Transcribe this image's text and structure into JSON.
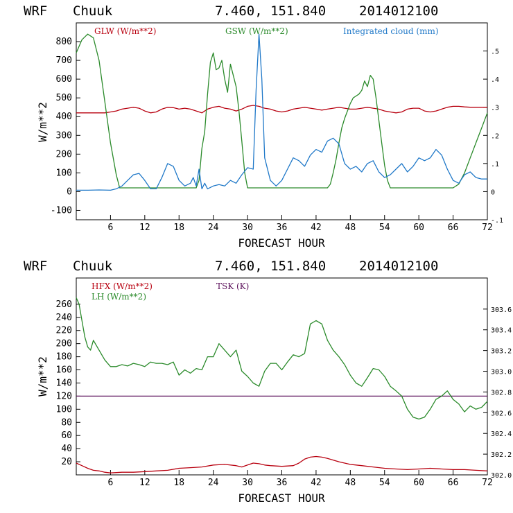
{
  "chart_data": [
    {
      "type": "line",
      "header": {
        "model": "WRF",
        "station": "Chuuk",
        "coords": "7.460, 151.840",
        "init": "2014012100"
      },
      "xlabel": "FORECAST HOUR",
      "ylabel": "W/m**2",
      "xlim": [
        0,
        72
      ],
      "ylim": [
        -150,
        900
      ],
      "y2lim": [
        -0.1,
        0.6
      ],
      "xticks": [
        6,
        12,
        18,
        24,
        30,
        36,
        42,
        48,
        54,
        60,
        66,
        72
      ],
      "yticks": [
        -100,
        0,
        100,
        200,
        300,
        400,
        500,
        600,
        700,
        800
      ],
      "y2ticks": [
        -0.1,
        0,
        0.1,
        0.2,
        0.3,
        0.4,
        0.5
      ],
      "y2ticklabels": [
        "-.1",
        "0",
        ".1",
        ".2",
        ".3",
        ".4",
        ".5"
      ],
      "series": [
        {
          "name": "GLW (W/m**2)",
          "color": "#b8000f",
          "axis": "left",
          "x": [
            0,
            3,
            5,
            6,
            7,
            8,
            9,
            10,
            11,
            12,
            13,
            14,
            15,
            16,
            17,
            18,
            19,
            20,
            21,
            22,
            23,
            24,
            25,
            26,
            27,
            28,
            29,
            30,
            31,
            32,
            33,
            34,
            35,
            36,
            37,
            38,
            39,
            40,
            41,
            42,
            43,
            44,
            45,
            46,
            47,
            48,
            49,
            50,
            51,
            52,
            53,
            54,
            55,
            56,
            57,
            58,
            59,
            60,
            61,
            62,
            63,
            64,
            65,
            66,
            67,
            68,
            69,
            70,
            71,
            72
          ],
          "y": [
            420,
            420,
            420,
            425,
            430,
            440,
            445,
            450,
            445,
            430,
            420,
            425,
            440,
            450,
            448,
            440,
            445,
            440,
            430,
            420,
            440,
            450,
            455,
            445,
            440,
            430,
            440,
            455,
            460,
            455,
            445,
            440,
            430,
            425,
            430,
            440,
            445,
            450,
            445,
            440,
            435,
            440,
            445,
            450,
            445,
            440,
            440,
            445,
            450,
            445,
            440,
            430,
            425,
            420,
            425,
            440,
            445,
            445,
            430,
            425,
            430,
            440,
            450,
            455,
            455,
            452,
            450,
            450,
            450,
            450
          ]
        },
        {
          "name": "GSW (W/m**2)",
          "color": "#2a8a2a",
          "axis": "left",
          "x": [
            0,
            1,
            2,
            3,
            4,
            5,
            6,
            7,
            7.6,
            8,
            9,
            10,
            11,
            12,
            13,
            14,
            15,
            16,
            17,
            18,
            19,
            20,
            21,
            21.5,
            22,
            22.5,
            23,
            23.5,
            24,
            24.5,
            25,
            25.5,
            26,
            26.5,
            27,
            27.5,
            28,
            28.5,
            29,
            29.5,
            30,
            30.5,
            31,
            31.5,
            32,
            33,
            34,
            35,
            36,
            37,
            38,
            39,
            40,
            41,
            42,
            43,
            44,
            44.5,
            45,
            45.5,
            46,
            46.5,
            47,
            47.5,
            48,
            48.5,
            49,
            49.5,
            50,
            50.5,
            51,
            51.5,
            52,
            52.5,
            53,
            53.5,
            54,
            54.5,
            55,
            55.5,
            56,
            57,
            58,
            59,
            60,
            61,
            62,
            63,
            64,
            65,
            66,
            67,
            68,
            69,
            70,
            71,
            72
          ],
          "y": [
            740,
            810,
            840,
            820,
            700,
            480,
            260,
            90,
            20,
            20,
            20,
            20,
            20,
            20,
            20,
            20,
            20,
            20,
            20,
            20,
            20,
            20,
            20,
            60,
            230,
            320,
            520,
            690,
            740,
            650,
            660,
            700,
            600,
            530,
            680,
            620,
            560,
            430,
            270,
            100,
            20,
            20,
            20,
            20,
            20,
            20,
            20,
            20,
            20,
            20,
            20,
            20,
            20,
            20,
            20,
            20,
            20,
            40,
            100,
            170,
            260,
            340,
            390,
            430,
            470,
            500,
            510,
            520,
            540,
            590,
            560,
            620,
            600,
            500,
            380,
            260,
            140,
            60,
            20,
            20,
            20,
            20,
            20,
            20,
            20,
            20,
            20,
            20,
            20,
            20,
            20,
            40,
            100,
            180,
            260,
            340,
            420
          ]
        },
        {
          "name": "Integrated cloud (mm)",
          "color": "#1f78c8",
          "axis": "right",
          "x": [
            0,
            2,
            4,
            6,
            7,
            8,
            9,
            10,
            11,
            12,
            13,
            14,
            15,
            16,
            17,
            18,
            19,
            20,
            20.5,
            21,
            21.5,
            22,
            22.5,
            23,
            24,
            25,
            26,
            27,
            28,
            29,
            30,
            31,
            31.5,
            32,
            32.5,
            33,
            34,
            35,
            36,
            37,
            38,
            39,
            40,
            41,
            42,
            43,
            44,
            45,
            46,
            47,
            48,
            49,
            50,
            51,
            52,
            53,
            54,
            55,
            56,
            57,
            58,
            59,
            60,
            61,
            62,
            63,
            64,
            65,
            66,
            67,
            68,
            69,
            70,
            71,
            72
          ],
          "y": [
            0.005,
            0.005,
            0.006,
            0.005,
            0.01,
            0.02,
            0.04,
            0.06,
            0.065,
            0.04,
            0.01,
            0.01,
            0.05,
            0.1,
            0.09,
            0.04,
            0.02,
            0.03,
            0.05,
            0.02,
            0.08,
            0.01,
            0.03,
            0.01,
            0.02,
            0.025,
            0.02,
            0.04,
            0.03,
            0.06,
            0.085,
            0.08,
            0.36,
            0.56,
            0.4,
            0.12,
            0.04,
            0.02,
            0.04,
            0.08,
            0.12,
            0.11,
            0.09,
            0.13,
            0.15,
            0.14,
            0.18,
            0.19,
            0.17,
            0.1,
            0.08,
            0.09,
            0.07,
            0.1,
            0.11,
            0.07,
            0.05,
            0.06,
            0.08,
            0.1,
            0.07,
            0.09,
            0.12,
            0.11,
            0.12,
            0.15,
            0.13,
            0.08,
            0.04,
            0.03,
            0.06,
            0.07,
            0.05,
            0.045,
            0.045
          ]
        }
      ]
    },
    {
      "type": "line",
      "header": {
        "model": "WRF",
        "station": "Chuuk",
        "coords": "7.460, 151.840",
        "init": "2014012100"
      },
      "xlabel": "FORECAST HOUR",
      "ylabel": "W/m**2",
      "xlim": [
        0,
        72
      ],
      "ylim": [
        0,
        300
      ],
      "y2lim": [
        302.0,
        303.9
      ],
      "xticks": [
        6,
        12,
        18,
        24,
        30,
        36,
        42,
        48,
        54,
        60,
        66,
        72
      ],
      "yticks": [
        20,
        40,
        60,
        80,
        100,
        120,
        140,
        160,
        180,
        200,
        220,
        240,
        260
      ],
      "y2ticks": [
        302.0,
        302.2,
        302.4,
        302.6,
        302.8,
        303.0,
        303.2,
        303.4,
        303.6
      ],
      "y2ticklabels": [
        "302.0",
        "302.2",
        "302.4",
        "302.6",
        "302.8",
        "303.0",
        "303.2",
        "303.4",
        "303.6"
      ],
      "series": [
        {
          "name": "HFX (W/m**2)",
          "color": "#b8000f",
          "axis": "left",
          "x": [
            0,
            1,
            2,
            3,
            4,
            5,
            6,
            8,
            10,
            12,
            14,
            16,
            18,
            20,
            22,
            24,
            26,
            28,
            29,
            30,
            31,
            32,
            33,
            34,
            36,
            38,
            39,
            40,
            41,
            42,
            43,
            44,
            46,
            48,
            50,
            52,
            54,
            56,
            58,
            60,
            62,
            64,
            66,
            68,
            70,
            72
          ],
          "y": [
            18,
            14,
            10,
            7,
            6,
            4,
            3,
            4,
            4,
            5,
            6,
            7,
            10,
            11,
            12,
            15,
            16,
            14,
            12,
            15,
            18,
            17,
            15,
            14,
            13,
            14,
            18,
            24,
            27,
            28,
            27,
            25,
            20,
            16,
            14,
            12,
            10,
            9,
            8,
            9,
            10,
            9,
            8,
            8,
            7,
            6
          ]
        },
        {
          "name": "LH (W/m**2)",
          "color": "#2a8a2a",
          "axis": "left",
          "x": [
            0,
            0.5,
            1,
            1.5,
            2,
            2.5,
            3,
            4,
            5,
            6,
            7,
            8,
            9,
            10,
            11,
            12,
            13,
            14,
            15,
            16,
            17,
            18,
            19,
            20,
            21,
            22,
            23,
            24,
            25,
            26,
            27,
            28,
            29,
            30,
            31,
            32,
            33,
            34,
            35,
            36,
            37,
            38,
            39,
            40,
            41,
            42,
            43,
            44,
            45,
            46,
            47,
            48,
            49,
            50,
            51,
            52,
            53,
            54,
            55,
            56,
            57,
            58,
            59,
            60,
            61,
            62,
            63,
            64,
            65,
            66,
            67,
            68,
            69,
            70,
            71,
            72
          ],
          "y": [
            270,
            260,
            235,
            210,
            195,
            190,
            205,
            190,
            175,
            165,
            165,
            168,
            166,
            170,
            168,
            165,
            172,
            170,
            170,
            168,
            172,
            152,
            160,
            155,
            162,
            160,
            180,
            180,
            200,
            190,
            180,
            190,
            158,
            150,
            140,
            135,
            158,
            170,
            170,
            160,
            172,
            183,
            180,
            185,
            230,
            235,
            230,
            205,
            190,
            180,
            168,
            152,
            140,
            135,
            148,
            162,
            160,
            150,
            135,
            128,
            120,
            100,
            88,
            85,
            88,
            100,
            115,
            120,
            128,
            115,
            108,
            96,
            105,
            100,
            103,
            112
          ]
        }
      ],
      "reference_line": {
        "name": "TSK (K)",
        "color": "#5a0f5a",
        "y": 120
      }
    }
  ]
}
